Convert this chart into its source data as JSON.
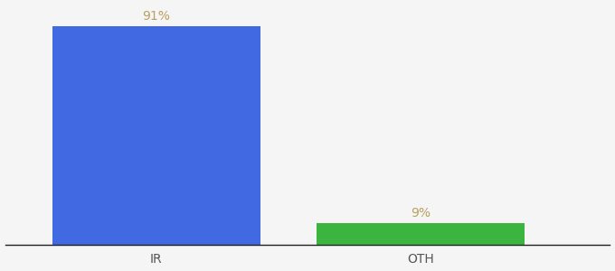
{
  "categories": [
    "IR",
    "OTH"
  ],
  "values": [
    91,
    9
  ],
  "bar_colors": [
    "#4169e1",
    "#3cb540"
  ],
  "label_color": "#b8a060",
  "label_fontsize": 10,
  "xlabel_fontsize": 10,
  "xlabel_color": "#555555",
  "ylim": [
    0,
    100
  ],
  "background_color": "#f5f5f5",
  "bar_width": 0.55,
  "x_positions": [
    0.3,
    1.0
  ]
}
